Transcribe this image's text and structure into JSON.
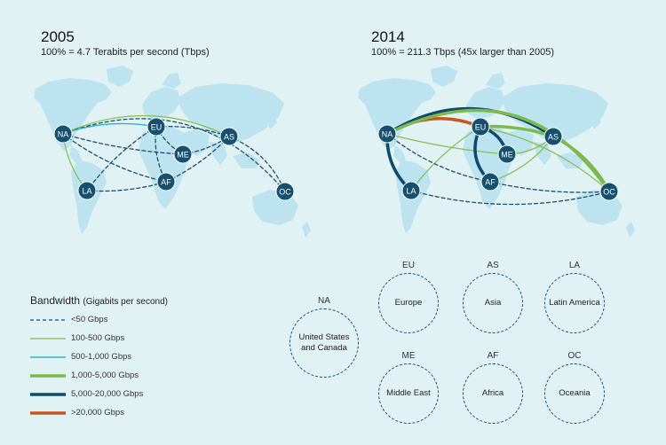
{
  "panels": [
    {
      "key": "p2005",
      "title": "2005",
      "subtitle": "100% = 4.7 Terabits per second (Tbps)"
    },
    {
      "key": "p2014",
      "title": "2014",
      "subtitle": "100% = 211.3 Tbps (45x larger than 2005)"
    }
  ],
  "colors": {
    "background": "#e0f2f4",
    "land": "#bde3f0",
    "node": "#15506f",
    "lt50": "#1a4e6e",
    "b100_500": "#86bd4f",
    "b500_1000": "#29b6c7",
    "b1000_5000": "#7dba4e",
    "b5000_20000": "#0d4a6c",
    "gt20000": "#c9541f"
  },
  "legend": {
    "title": "Bandwidth",
    "unit": "(Gigabits per second)",
    "items": [
      {
        "label": "<50 Gbps",
        "style": "dashed",
        "color": "#1a4e6e",
        "width": 1.3
      },
      {
        "label": "100-500 Gbps",
        "style": "solid",
        "color": "#86bd4f",
        "width": 1.2
      },
      {
        "label": "500-1,000 Gbps",
        "style": "solid",
        "color": "#29b6c7",
        "width": 1.4
      },
      {
        "label": "1,000-5,000 Gbps",
        "style": "solid",
        "color": "#7dba4e",
        "width": 3.5
      },
      {
        "label": "5,000-20,000 Gbps",
        "style": "solid",
        "color": "#0d4a6c",
        "width": 3.5
      },
      {
        "label": ">20,000 Gbps",
        "style": "solid",
        "color": "#c9541f",
        "width": 3.5
      }
    ]
  },
  "nodes": [
    "NA",
    "EU",
    "AS",
    "ME",
    "AF",
    "LA",
    "OC"
  ],
  "regions": [
    {
      "code": "NA",
      "name": "United States and Canada"
    },
    {
      "code": "EU",
      "name": "Europe"
    },
    {
      "code": "AS",
      "name": "Asia"
    },
    {
      "code": "LA",
      "name": "Latin America"
    },
    {
      "code": "ME",
      "name": "Middle East"
    },
    {
      "code": "AF",
      "name": "Africa"
    },
    {
      "code": "OC",
      "name": "Oceania"
    }
  ],
  "links": {
    "p2005": [
      {
        "from": "NA",
        "to": "EU",
        "bandwidth": "500-1,000 Gbps"
      },
      {
        "from": "NA",
        "to": "AS",
        "bandwidth": "100-500 Gbps"
      },
      {
        "from": "NA",
        "to": "LA",
        "bandwidth": "100-500 Gbps"
      },
      {
        "from": "NA",
        "to": "OC",
        "bandwidth": "<50 Gbps"
      },
      {
        "from": "NA",
        "to": "ME",
        "bandwidth": "<50 Gbps"
      },
      {
        "from": "NA",
        "to": "AF",
        "bandwidth": "<50 Gbps"
      },
      {
        "from": "EU",
        "to": "ME",
        "bandwidth": "<50 Gbps"
      },
      {
        "from": "EU",
        "to": "AS",
        "bandwidth": "<50 Gbps"
      },
      {
        "from": "EU",
        "to": "AF",
        "bandwidth": "<50 Gbps"
      },
      {
        "from": "EU",
        "to": "LA",
        "bandwidth": "<50 Gbps"
      },
      {
        "from": "ME",
        "to": "AS",
        "bandwidth": "<50 Gbps"
      },
      {
        "from": "AF",
        "to": "AS",
        "bandwidth": "<50 Gbps"
      },
      {
        "from": "AS",
        "to": "OC",
        "bandwidth": "<50 Gbps"
      },
      {
        "from": "LA",
        "to": "AF",
        "bandwidth": "<50 Gbps"
      }
    ],
    "p2014": [
      {
        "from": "NA",
        "to": "EU",
        "bandwidth": ">20,000 Gbps"
      },
      {
        "from": "NA",
        "to": "AS",
        "bandwidth": "5,000-20,000 Gbps"
      },
      {
        "from": "NA",
        "to": "OC",
        "bandwidth": "1,000-5,000 Gbps"
      },
      {
        "from": "NA",
        "to": "LA",
        "bandwidth": "5,000-20,000 Gbps"
      },
      {
        "from": "NA",
        "to": "ME",
        "bandwidth": "100-500 Gbps"
      },
      {
        "from": "NA",
        "to": "AF",
        "bandwidth": "<50 Gbps"
      },
      {
        "from": "EU",
        "to": "AS",
        "bandwidth": "1,000-5,000 Gbps"
      },
      {
        "from": "EU",
        "to": "ME",
        "bandwidth": "5,000-20,000 Gbps"
      },
      {
        "from": "EU",
        "to": "AF",
        "bandwidth": "5,000-20,000 Gbps"
      },
      {
        "from": "EU",
        "to": "LA",
        "bandwidth": "100-500 Gbps"
      },
      {
        "from": "EU",
        "to": "OC",
        "bandwidth": "100-500 Gbps"
      },
      {
        "from": "ME",
        "to": "AS",
        "bandwidth": "100-500 Gbps"
      },
      {
        "from": "AF",
        "to": "AS",
        "bandwidth": "100-500 Gbps"
      },
      {
        "from": "AS",
        "to": "OC",
        "bandwidth": "1,000-5,000 Gbps"
      },
      {
        "from": "LA",
        "to": "OC",
        "bandwidth": "<50 Gbps"
      },
      {
        "from": "AF",
        "to": "OC",
        "bandwidth": "<50 Gbps"
      }
    ]
  }
}
